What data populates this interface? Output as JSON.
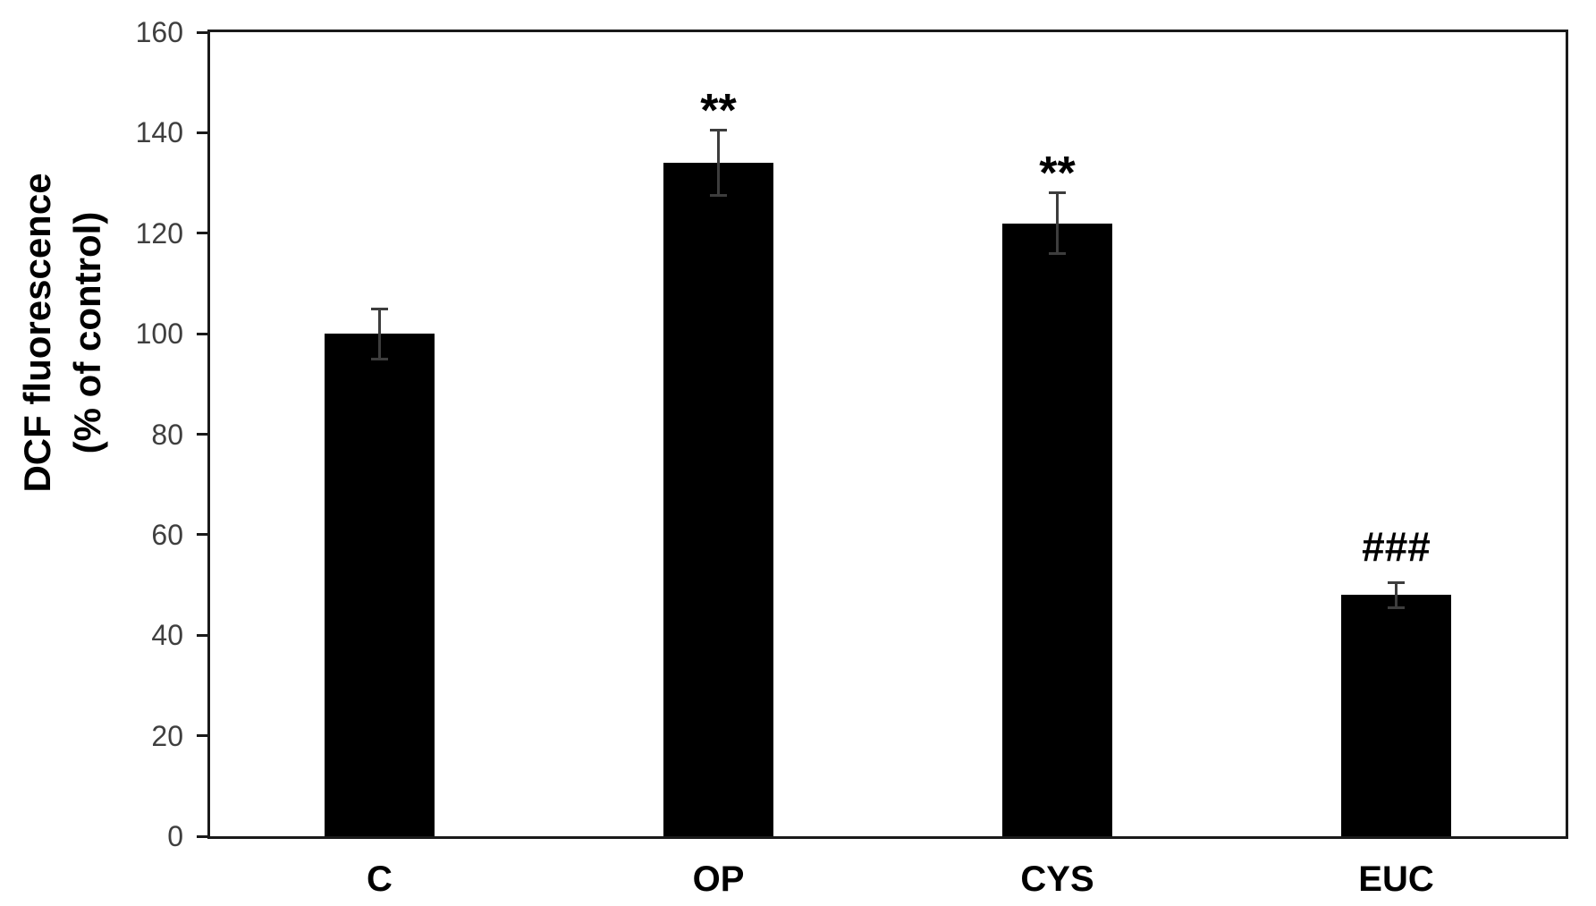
{
  "figure": {
    "background": "#ffffff"
  },
  "chart_data": {
    "type": "bar",
    "title": "",
    "ylabel": "DCF fluorescence (% of control)",
    "ylabel_lines": [
      "DCF fluorescence",
      "(% of control)"
    ],
    "xlabel": "",
    "categories": [
      "C",
      "OP",
      "CYS",
      "EUC"
    ],
    "values": [
      100,
      134,
      122,
      48
    ],
    "error_bars": [
      5,
      6.5,
      6,
      2.5
    ],
    "significance_labels": [
      "",
      "**",
      "**",
      "###"
    ],
    "ylim": [
      0,
      160
    ],
    "yticks": [
      0,
      20,
      40,
      60,
      80,
      100,
      120,
      140,
      160
    ],
    "grid": "off",
    "legend": "none",
    "bar_color": "#000000",
    "error_bar_color": "#3d3d3d",
    "axis_color": "#1a1a1a",
    "tick_label_color": "#3f3f3f",
    "annotation_color": "#000000"
  }
}
